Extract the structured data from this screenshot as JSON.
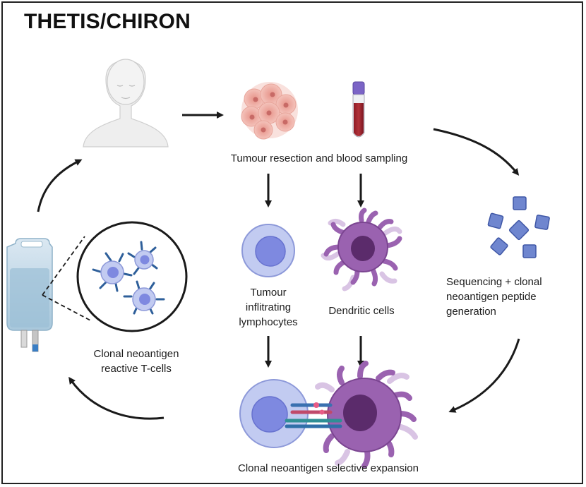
{
  "title": "THETIS/CHIRON",
  "labels": {
    "tumour_blood": "Tumour resection and blood sampling",
    "til_line1": "Tumour",
    "til_line2": "inflitrating",
    "til_line3": "lymphocytes",
    "dendritic": "Dendritic cells",
    "sequencing_line1": "Sequencing + clonal",
    "sequencing_line2": "neoantigen peptide",
    "sequencing_line3": "generation",
    "reactive_line1": "Clonal neoantigen",
    "reactive_line2": "reactive T-cells",
    "expansion": "Clonal neoantigen selective expansion"
  },
  "icons": [
    "patient-icon",
    "tumour-icon",
    "blood-tube-icon",
    "lymphocyte-icon",
    "dendritic-cell-icon",
    "peptide-icon",
    "iv-bag-icon",
    "t-cell-zoom-icon"
  ],
  "colors": {
    "lymphocyte_outer": "#b9c3ec",
    "lymphocyte_nucleus": "#7c86dc",
    "dendritic_body": "#9a62b0",
    "dendritic_nucleus": "#5a2a6a",
    "peptide": "#6f86cf",
    "arrow": "#1a1a1a"
  }
}
